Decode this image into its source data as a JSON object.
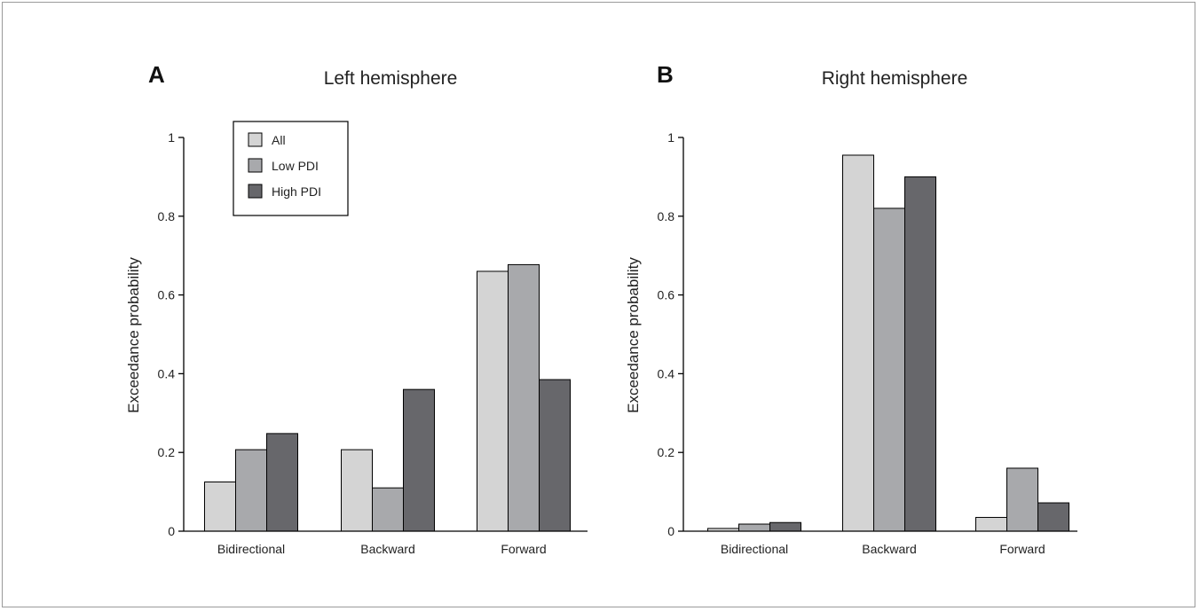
{
  "chart_data": [
    {
      "type": "bar",
      "panel": "A",
      "title": "Left hemisphere",
      "xlabel": "",
      "ylabel": "Exceedance probability",
      "ylim": [
        0,
        1
      ],
      "yticks": [
        "0",
        "0.2",
        "0.4",
        "0.6",
        "0.8",
        "1"
      ],
      "categories": [
        "Bidirectional",
        "Backward",
        "Forward"
      ],
      "series": [
        {
          "name": "All",
          "color": "#d4d4d4",
          "values": [
            0.125,
            0.207,
            0.66
          ]
        },
        {
          "name": "Low PDI",
          "color": "#a8a9ac",
          "values": [
            0.207,
            0.11,
            0.677
          ]
        },
        {
          "name": "High PDI",
          "color": "#67676b",
          "values": [
            0.248,
            0.36,
            0.385
          ]
        }
      ],
      "legend": "top-left",
      "grid": false
    },
    {
      "type": "bar",
      "panel": "B",
      "title": "Right hemisphere",
      "xlabel": "",
      "ylabel": "Exceedance probability",
      "ylim": [
        0,
        1
      ],
      "yticks": [
        "0",
        "0.2",
        "0.4",
        "0.6",
        "0.8",
        "1"
      ],
      "categories": [
        "Bidirectional",
        "Backward",
        "Forward"
      ],
      "series": [
        {
          "name": "All",
          "color": "#d4d4d4",
          "values": [
            0.007,
            0.955,
            0.035
          ]
        },
        {
          "name": "Low PDI",
          "color": "#a8a9ac",
          "values": [
            0.018,
            0.82,
            0.16
          ]
        },
        {
          "name": "High PDI",
          "color": "#67676b",
          "values": [
            0.022,
            0.9,
            0.072
          ]
        }
      ],
      "legend": "none",
      "grid": false
    }
  ]
}
